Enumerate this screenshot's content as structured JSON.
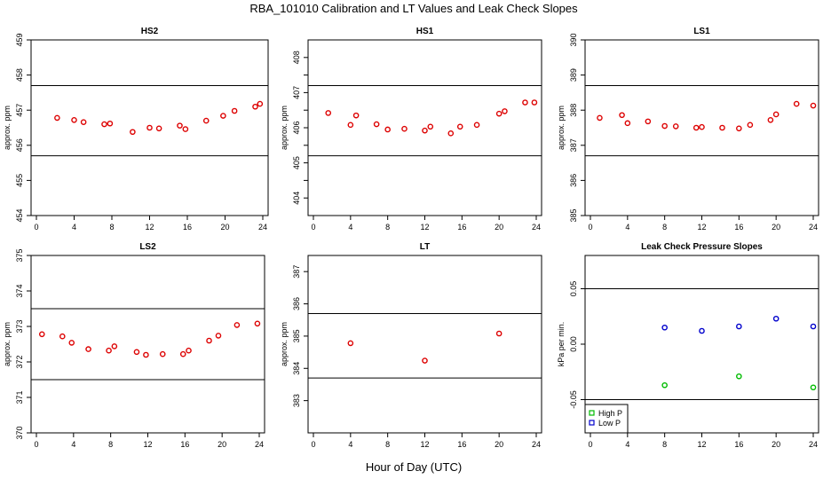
{
  "title": "RBA_101010  Calibration and LT Values and Leak Check Slopes",
  "xlabel": "Hour of Day (UTC)",
  "colors": {
    "cal": "#dd0000",
    "high": "#00bb00",
    "low": "#0000cc",
    "axis": "#000000"
  },
  "chart_data": [
    {
      "id": "hs2",
      "type": "scatter",
      "title": "HS2",
      "ylabel": "approx. ppm",
      "xlim": [
        0,
        24
      ],
      "xticks": [
        0,
        4,
        8,
        12,
        16,
        20,
        24
      ],
      "ylim": [
        454,
        459
      ],
      "yticks": [
        454,
        455,
        456,
        457,
        458,
        459
      ],
      "hlines": [
        457.7,
        455.7
      ],
      "series": [
        {
          "name": "cal",
          "marker": "circle",
          "x": [
            2.2,
            4.0,
            5.0,
            7.2,
            7.8,
            10.2,
            12.0,
            13.0,
            15.2,
            15.8,
            18.0,
            19.8,
            21.0,
            23.2,
            23.7
          ],
          "y": [
            456.78,
            456.72,
            456.66,
            456.6,
            456.62,
            456.38,
            456.5,
            456.48,
            456.56,
            456.46,
            456.7,
            456.84,
            456.98,
            457.1,
            457.18
          ]
        }
      ]
    },
    {
      "id": "hs1",
      "type": "scatter",
      "title": "HS1",
      "ylabel": "approx. ppm",
      "xlim": [
        0,
        24
      ],
      "xticks": [
        0,
        4,
        8,
        12,
        16,
        20,
        24
      ],
      "ylim": [
        403.5,
        408.5
      ],
      "yticks": [
        404,
        404.5,
        405,
        405.5,
        406,
        406.5,
        407,
        407.5,
        408
      ],
      "ytick_labels": [
        "404",
        "",
        "405",
        "",
        "406",
        "",
        "407",
        "",
        "408"
      ],
      "hlines": [
        407.2,
        405.2
      ],
      "series": [
        {
          "name": "cal",
          "marker": "circle",
          "x": [
            1.6,
            4.0,
            4.6,
            6.8,
            8.0,
            9.8,
            12.0,
            12.6,
            14.8,
            15.8,
            17.6,
            20.0,
            20.6,
            22.8,
            23.8
          ],
          "y": [
            406.42,
            406.08,
            406.35,
            406.1,
            405.95,
            405.97,
            405.92,
            406.03,
            405.84,
            406.03,
            406.08,
            406.4,
            406.47,
            406.72,
            406.72
          ]
        }
      ]
    },
    {
      "id": "ls1",
      "type": "scatter",
      "title": "LS1",
      "ylabel": "approx. ppm",
      "xlim": [
        0,
        24
      ],
      "xticks": [
        0,
        4,
        8,
        12,
        16,
        20,
        24
      ],
      "ylim": [
        385,
        390
      ],
      "yticks": [
        385,
        386,
        387,
        388,
        389,
        390
      ],
      "hlines": [
        388.7,
        386.7
      ],
      "series": [
        {
          "name": "cal",
          "marker": "circle",
          "x": [
            1.0,
            3.4,
            4.0,
            6.2,
            8.0,
            9.2,
            11.4,
            12.0,
            14.2,
            16.0,
            17.2,
            19.4,
            20.0,
            22.2,
            24.0
          ],
          "y": [
            387.78,
            387.86,
            387.63,
            387.68,
            387.55,
            387.54,
            387.5,
            387.52,
            387.5,
            387.48,
            387.58,
            387.72,
            387.88,
            388.18,
            388.13
          ]
        }
      ]
    },
    {
      "id": "ls2",
      "type": "scatter",
      "title": "LS2",
      "ylabel": "approx. ppm",
      "xlim": [
        0,
        24
      ],
      "xticks": [
        0,
        4,
        8,
        12,
        16,
        20,
        24
      ],
      "ylim": [
        370,
        375
      ],
      "yticks": [
        370,
        371,
        372,
        373,
        374,
        375
      ],
      "hlines": [
        373.5,
        371.5
      ],
      "series": [
        {
          "name": "cal",
          "marker": "circle",
          "x": [
            0.6,
            2.8,
            3.8,
            5.6,
            7.8,
            8.4,
            10.8,
            11.8,
            13.6,
            15.8,
            16.4,
            18.6,
            19.6,
            21.6,
            23.8
          ],
          "y": [
            372.78,
            372.72,
            372.54,
            372.36,
            372.32,
            372.44,
            372.28,
            372.2,
            372.22,
            372.22,
            372.32,
            372.6,
            372.74,
            373.04,
            373.08
          ]
        }
      ]
    },
    {
      "id": "lt",
      "type": "scatter",
      "title": "LT",
      "ylabel": "approx. ppm",
      "xlim": [
        0,
        24
      ],
      "xticks": [
        0,
        4,
        8,
        12,
        16,
        20,
        24
      ],
      "ylim": [
        382,
        387.5
      ],
      "yticks": [
        383,
        384,
        385,
        386,
        387
      ],
      "hlines": [
        385.7,
        383.7
      ],
      "series": [
        {
          "name": "cal",
          "marker": "circle",
          "x": [
            4.0,
            12.0,
            20.0
          ],
          "y": [
            384.78,
            384.24,
            385.08
          ]
        }
      ]
    },
    {
      "id": "leak",
      "type": "scatter",
      "title": "Leak Check Pressure Slopes",
      "ylabel": "kPa per min.",
      "xlim": [
        0,
        24
      ],
      "xticks": [
        0,
        4,
        8,
        12,
        16,
        20,
        24
      ],
      "ylim": [
        -0.08,
        0.08
      ],
      "yticks": [
        -0.05,
        0,
        0.05
      ],
      "ytick_labels": [
        "-0.05",
        "0.00",
        "0.05"
      ],
      "hlines": [
        0.05,
        -0.05
      ],
      "series": [
        {
          "name": "High P",
          "marker": "circle",
          "color_key": "high",
          "x": [
            8.0,
            16.0,
            24.0
          ],
          "y": [
            -0.037,
            -0.029,
            -0.039
          ]
        },
        {
          "name": "Low P",
          "marker": "circle",
          "color_key": "low",
          "x": [
            8.0,
            12.0,
            16.0,
            20.0,
            24.0
          ],
          "y": [
            0.015,
            0.012,
            0.016,
            0.023,
            0.016
          ]
        }
      ],
      "legend": {
        "position": "bottom-left",
        "entries": [
          {
            "label": "High P",
            "color_key": "high"
          },
          {
            "label": "Low P",
            "color_key": "low"
          }
        ]
      }
    }
  ]
}
